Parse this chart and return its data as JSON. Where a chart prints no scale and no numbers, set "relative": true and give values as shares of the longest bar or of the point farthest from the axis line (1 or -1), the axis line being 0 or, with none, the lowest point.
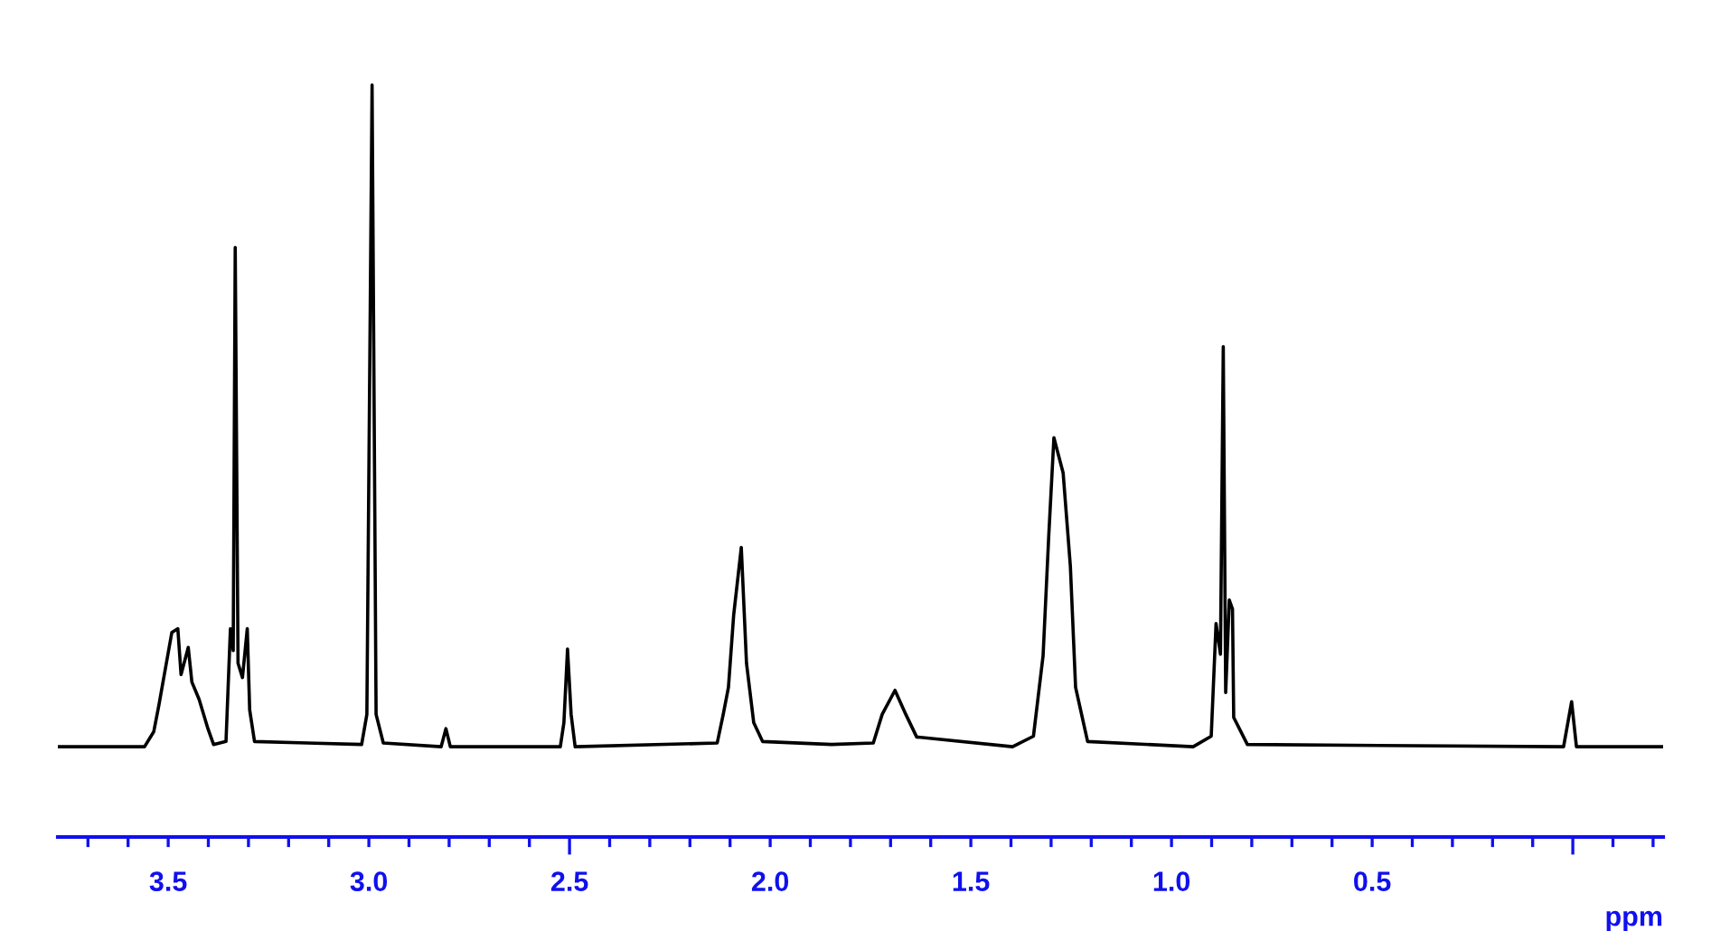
{
  "chart_data": {
    "type": "line",
    "relative": true,
    "xlabel": "ppm",
    "xlim": [
      3.775,
      -0.225
    ],
    "xticks": [
      {
        "value": 3.7,
        "label": null
      },
      {
        "value": 3.6,
        "label": null
      },
      {
        "value": 3.5,
        "label": "3.5"
      },
      {
        "value": 3.4,
        "label": null
      },
      {
        "value": 3.3,
        "label": null
      },
      {
        "value": 3.2,
        "label": null
      },
      {
        "value": 3.1,
        "label": null
      },
      {
        "value": 3.0,
        "label": "3.0"
      },
      {
        "value": 2.9,
        "label": null
      },
      {
        "value": 2.8,
        "label": null
      },
      {
        "value": 2.7,
        "label": null
      },
      {
        "value": 2.6,
        "label": null
      },
      {
        "value": 2.5,
        "label": "2.5"
      },
      {
        "value": 2.4,
        "label": null
      },
      {
        "value": 2.3,
        "label": null
      },
      {
        "value": 2.2,
        "label": null
      },
      {
        "value": 2.1,
        "label": null
      },
      {
        "value": 2.0,
        "label": "2.0"
      },
      {
        "value": 1.9,
        "label": null
      },
      {
        "value": 1.8,
        "label": null
      },
      {
        "value": 1.7,
        "label": null
      },
      {
        "value": 1.6,
        "label": null
      },
      {
        "value": 1.5,
        "label": "1.5"
      },
      {
        "value": 1.4,
        "label": null
      },
      {
        "value": 1.3,
        "label": null
      },
      {
        "value": 1.2,
        "label": null
      },
      {
        "value": 1.1,
        "label": null
      },
      {
        "value": 1.0,
        "label": "1.0"
      },
      {
        "value": 0.9,
        "label": null
      },
      {
        "value": 0.8,
        "label": null
      },
      {
        "value": 0.7,
        "label": null
      },
      {
        "value": 0.6,
        "label": null
      },
      {
        "value": 0.5,
        "label": "0.5"
      },
      {
        "value": 0.4,
        "label": null
      },
      {
        "value": 0.3,
        "label": null
      },
      {
        "value": 0.2,
        "label": null
      },
      {
        "value": 0.1,
        "label": null
      },
      {
        "value": 0.0,
        "label": null
      },
      {
        "value": -0.1,
        "label": null
      },
      {
        "value": -0.2,
        "label": null
      }
    ],
    "grid": false,
    "legend": false,
    "marker": "none",
    "line_style": "solid",
    "series": [
      {
        "color": "#000000",
        "x": [
          3.775,
          3.559,
          3.536,
          3.523,
          3.491,
          3.476,
          3.468,
          3.45,
          3.441,
          3.423,
          3.401,
          3.387,
          3.356,
          3.345,
          3.338,
          3.333,
          3.326,
          3.315,
          3.303,
          3.297,
          3.285,
          3.153,
          3.018,
          3.005,
          2.992,
          2.982,
          2.964,
          2.82,
          2.808,
          2.797,
          2.523,
          2.514,
          2.505,
          2.496,
          2.486,
          2.132,
          2.117,
          2.104,
          2.091,
          2.072,
          2.059,
          2.041,
          2.019,
          1.847,
          1.743,
          1.721,
          1.689,
          1.662,
          1.635,
          1.396,
          1.344,
          1.32,
          1.306,
          1.293,
          1.27,
          1.252,
          1.239,
          1.209,
          0.946,
          0.901,
          0.889,
          0.878,
          0.871,
          0.865,
          0.856,
          0.848,
          0.845,
          0.811,
          0.023,
          0.003,
          -0.009,
          -0.225
        ],
        "values": [
          0.12,
          0.12,
          0.14,
          0.176,
          0.272,
          0.277,
          0.216,
          0.252,
          0.206,
          0.183,
          0.144,
          0.123,
          0.127,
          0.277,
          0.248,
          0.784,
          0.231,
          0.212,
          0.277,
          0.169,
          0.127,
          0.125,
          0.123,
          0.163,
          1,
          0.163,
          0.125,
          0.12,
          0.144,
          0.12,
          0.12,
          0.152,
          0.25,
          0.163,
          0.12,
          0.125,
          0.163,
          0.199,
          0.295,
          0.385,
          0.231,
          0.152,
          0.127,
          0.123,
          0.125,
          0.163,
          0.195,
          0.163,
          0.133,
          0.12,
          0.134,
          0.241,
          0.399,
          0.531,
          0.484,
          0.36,
          0.199,
          0.127,
          0.12,
          0.134,
          0.284,
          0.243,
          0.652,
          0.192,
          0.315,
          0.303,
          0.159,
          0.123,
          0.12,
          0.18,
          0.12,
          0.12
        ]
      }
    ]
  }
}
